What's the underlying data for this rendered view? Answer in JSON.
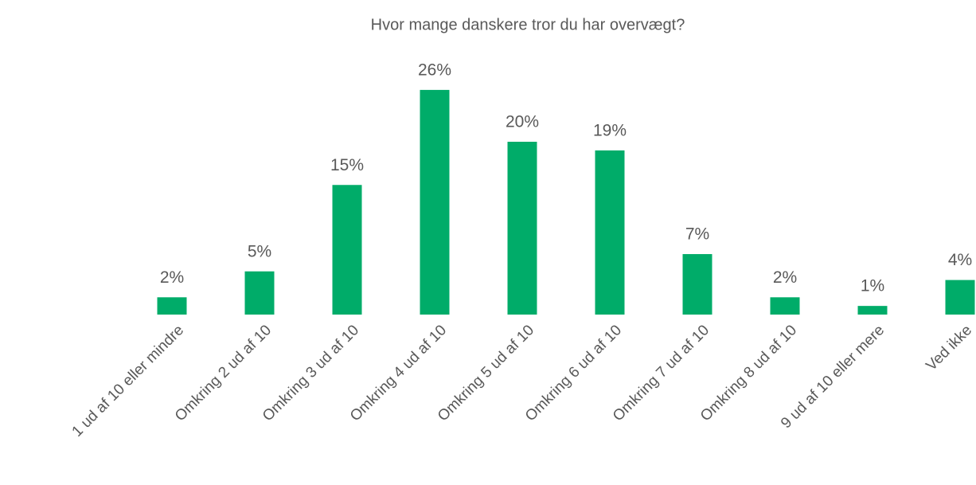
{
  "chart_data": {
    "type": "bar",
    "title": "Hvor mange danskere tror du har overvægt?",
    "categories": [
      "1 ud af 10 eller mindre",
      "Omkring 2 ud af 10",
      "Omkring 3 ud af 10",
      "Omkring 4 ud af 10",
      "Omkring 5 ud af 10",
      "Omkring 6 ud af 10",
      "Omkring 7 ud af 10",
      "Omkring 8 ud af 10",
      "9 ud af 10 eller mere",
      "Ved ikke"
    ],
    "values": [
      2,
      5,
      15,
      26,
      20,
      19,
      7,
      2,
      1,
      4
    ],
    "value_labels": [
      "2%",
      "5%",
      "15%",
      "26%",
      "20%",
      "19%",
      "7%",
      "2%",
      "1%",
      "4%"
    ],
    "color": "#00ac69"
  }
}
